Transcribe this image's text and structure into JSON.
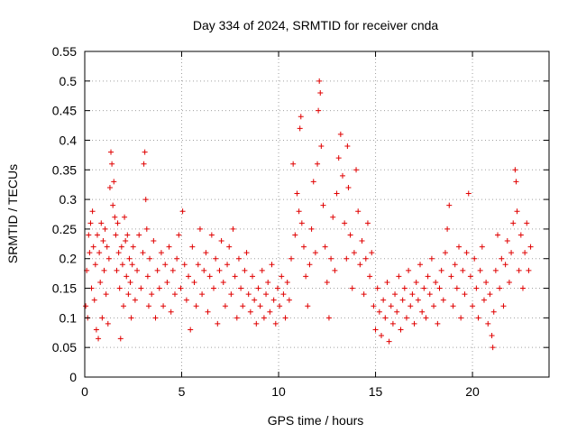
{
  "chart_data": {
    "type": "scatter",
    "title": "Day 334 of 2024, SRMTID for receiver cnda",
    "xlabel": "GPS time / hours",
    "ylabel": "SRMTID / TECUs",
    "xlim": [
      0,
      23.95
    ],
    "ylim": [
      0,
      0.55
    ],
    "x_ticks": [
      0,
      5,
      10,
      15,
      20
    ],
    "x_tick_labels": [
      "0",
      "5",
      "10",
      "15",
      "20"
    ],
    "y_ticks": [
      0,
      0.05,
      0.1,
      0.15,
      0.2,
      0.25,
      0.3,
      0.35,
      0.4,
      0.45,
      0.5,
      0.55
    ],
    "y_tick_labels": [
      "0",
      "0.05",
      "0.1",
      "0.15",
      "0.2",
      "0.25",
      "0.3",
      "0.35",
      "0.4",
      "0.45",
      "0.5",
      "0.55"
    ],
    "grid": true,
    "marker": "+",
    "color": "#e00000",
    "series": [
      {
        "name": "SRMTID",
        "points": [
          [
            0.05,
            0.12
          ],
          [
            0.1,
            0.18
          ],
          [
            0.15,
            0.1
          ],
          [
            0.2,
            0.24
          ],
          [
            0.25,
            0.21
          ],
          [
            0.3,
            0.26
          ],
          [
            0.35,
            0.15
          ],
          [
            0.4,
            0.28
          ],
          [
            0.45,
            0.22
          ],
          [
            0.5,
            0.13
          ],
          [
            0.55,
            0.19
          ],
          [
            0.6,
            0.08
          ],
          [
            0.65,
            0.24
          ],
          [
            0.7,
            0.065
          ],
          [
            0.75,
            0.21
          ],
          [
            0.8,
            0.16
          ],
          [
            0.85,
            0.26
          ],
          [
            0.9,
            0.1
          ],
          [
            0.95,
            0.23
          ],
          [
            1.0,
            0.18
          ],
          [
            1.05,
            0.25
          ],
          [
            1.1,
            0.14
          ],
          [
            1.15,
            0.22
          ],
          [
            1.2,
            0.09
          ],
          [
            1.25,
            0.2
          ],
          [
            1.3,
            0.32
          ],
          [
            1.35,
            0.38
          ],
          [
            1.4,
            0.36
          ],
          [
            1.45,
            0.29
          ],
          [
            1.5,
            0.33
          ],
          [
            1.55,
            0.27
          ],
          [
            1.6,
            0.24
          ],
          [
            1.65,
            0.18
          ],
          [
            1.7,
            0.26
          ],
          [
            1.75,
            0.21
          ],
          [
            1.8,
            0.15
          ],
          [
            1.85,
            0.065
          ],
          [
            1.9,
            0.22
          ],
          [
            1.95,
            0.19
          ],
          [
            2.0,
            0.12
          ],
          [
            2.05,
            0.27
          ],
          [
            2.1,
            0.23
          ],
          [
            2.15,
            0.17
          ],
          [
            2.2,
            0.24
          ],
          [
            2.25,
            0.14
          ],
          [
            2.3,
            0.2
          ],
          [
            2.35,
            0.16
          ],
          [
            2.4,
            0.1
          ],
          [
            2.45,
            0.19
          ],
          [
            2.5,
            0.22
          ],
          [
            2.6,
            0.13
          ],
          [
            2.7,
            0.18
          ],
          [
            2.8,
            0.24
          ],
          [
            2.9,
            0.15
          ],
          [
            3.0,
            0.21
          ],
          [
            3.05,
            0.36
          ],
          [
            3.1,
            0.38
          ],
          [
            3.15,
            0.3
          ],
          [
            3.2,
            0.25
          ],
          [
            3.25,
            0.17
          ],
          [
            3.3,
            0.12
          ],
          [
            3.35,
            0.2
          ],
          [
            3.45,
            0.14
          ],
          [
            3.55,
            0.23
          ],
          [
            3.65,
            0.1
          ],
          [
            3.75,
            0.18
          ],
          [
            3.85,
            0.15
          ],
          [
            3.95,
            0.21
          ],
          [
            4.05,
            0.12
          ],
          [
            4.15,
            0.19
          ],
          [
            4.25,
            0.16
          ],
          [
            4.35,
            0.22
          ],
          [
            4.45,
            0.11
          ],
          [
            4.55,
            0.18
          ],
          [
            4.65,
            0.14
          ],
          [
            4.75,
            0.2
          ],
          [
            4.85,
            0.24
          ],
          [
            4.95,
            0.15
          ],
          [
            5.05,
            0.28
          ],
          [
            5.15,
            0.19
          ],
          [
            5.25,
            0.13
          ],
          [
            5.35,
            0.17
          ],
          [
            5.45,
            0.08
          ],
          [
            5.55,
            0.22
          ],
          [
            5.65,
            0.16
          ],
          [
            5.75,
            0.12
          ],
          [
            5.85,
            0.19
          ],
          [
            5.95,
            0.25
          ],
          [
            6.05,
            0.14
          ],
          [
            6.15,
            0.18
          ],
          [
            6.25,
            0.21
          ],
          [
            6.35,
            0.11
          ],
          [
            6.45,
            0.17
          ],
          [
            6.55,
            0.24
          ],
          [
            6.65,
            0.15
          ],
          [
            6.75,
            0.2
          ],
          [
            6.85,
            0.09
          ],
          [
            6.95,
            0.18
          ],
          [
            7.05,
            0.23
          ],
          [
            7.15,
            0.16
          ],
          [
            7.25,
            0.12
          ],
          [
            7.35,
            0.19
          ],
          [
            7.45,
            0.22
          ],
          [
            7.55,
            0.14
          ],
          [
            7.65,
            0.25
          ],
          [
            7.75,
            0.17
          ],
          [
            7.85,
            0.1
          ],
          [
            7.95,
            0.2
          ],
          [
            8.05,
            0.15
          ],
          [
            8.15,
            0.12
          ],
          [
            8.25,
            0.18
          ],
          [
            8.35,
            0.21
          ],
          [
            8.45,
            0.14
          ],
          [
            8.55,
            0.11
          ],
          [
            8.65,
            0.17
          ],
          [
            8.75,
            0.13
          ],
          [
            8.85,
            0.09
          ],
          [
            8.95,
            0.15
          ],
          [
            9.05,
            0.12
          ],
          [
            9.15,
            0.18
          ],
          [
            9.25,
            0.1
          ],
          [
            9.35,
            0.14
          ],
          [
            9.45,
            0.16
          ],
          [
            9.55,
            0.11
          ],
          [
            9.65,
            0.19
          ],
          [
            9.75,
            0.13
          ],
          [
            9.85,
            0.09
          ],
          [
            9.95,
            0.15
          ],
          [
            10.05,
            0.12
          ],
          [
            10.15,
            0.17
          ],
          [
            10.25,
            0.14
          ],
          [
            10.35,
            0.1
          ],
          [
            10.45,
            0.16
          ],
          [
            10.55,
            0.13
          ],
          [
            10.65,
            0.2
          ],
          [
            10.75,
            0.36
          ],
          [
            10.85,
            0.24
          ],
          [
            10.95,
            0.31
          ],
          [
            11.05,
            0.28
          ],
          [
            11.1,
            0.42
          ],
          [
            11.15,
            0.44
          ],
          [
            11.2,
            0.26
          ],
          [
            11.3,
            0.22
          ],
          [
            11.4,
            0.17
          ],
          [
            11.5,
            0.12
          ],
          [
            11.6,
            0.19
          ],
          [
            11.7,
            0.25
          ],
          [
            11.8,
            0.33
          ],
          [
            11.9,
            0.21
          ],
          [
            12.0,
            0.36
          ],
          [
            12.05,
            0.45
          ],
          [
            12.1,
            0.5
          ],
          [
            12.15,
            0.48
          ],
          [
            12.2,
            0.39
          ],
          [
            12.3,
            0.29
          ],
          [
            12.4,
            0.22
          ],
          [
            12.5,
            0.16
          ],
          [
            12.6,
            0.1
          ],
          [
            12.7,
            0.2
          ],
          [
            12.8,
            0.27
          ],
          [
            12.9,
            0.18
          ],
          [
            13.0,
            0.31
          ],
          [
            13.1,
            0.37
          ],
          [
            13.2,
            0.41
          ],
          [
            13.3,
            0.34
          ],
          [
            13.4,
            0.26
          ],
          [
            13.5,
            0.2
          ],
          [
            13.55,
            0.39
          ],
          [
            13.6,
            0.32
          ],
          [
            13.7,
            0.24
          ],
          [
            13.8,
            0.15
          ],
          [
            13.9,
            0.21
          ],
          [
            14.0,
            0.35
          ],
          [
            14.1,
            0.28
          ],
          [
            14.2,
            0.19
          ],
          [
            14.3,
            0.23
          ],
          [
            14.4,
            0.14
          ],
          [
            14.5,
            0.2
          ],
          [
            14.6,
            0.26
          ],
          [
            14.7,
            0.17
          ],
          [
            14.8,
            0.21
          ],
          [
            14.9,
            0.12
          ],
          [
            15.0,
            0.08
          ],
          [
            15.1,
            0.15
          ],
          [
            15.2,
            0.11
          ],
          [
            15.3,
            0.07
          ],
          [
            15.4,
            0.13
          ],
          [
            15.5,
            0.1
          ],
          [
            15.6,
            0.16
          ],
          [
            15.7,
            0.06
          ],
          [
            15.8,
            0.12
          ],
          [
            15.9,
            0.09
          ],
          [
            16.0,
            0.14
          ],
          [
            16.1,
            0.11
          ],
          [
            16.2,
            0.17
          ],
          [
            16.3,
            0.08
          ],
          [
            16.4,
            0.13
          ],
          [
            16.5,
            0.15
          ],
          [
            16.6,
            0.1
          ],
          [
            16.7,
            0.18
          ],
          [
            16.8,
            0.12
          ],
          [
            16.9,
            0.14
          ],
          [
            17.0,
            0.09
          ],
          [
            17.1,
            0.16
          ],
          [
            17.2,
            0.13
          ],
          [
            17.3,
            0.19
          ],
          [
            17.4,
            0.11
          ],
          [
            17.5,
            0.15
          ],
          [
            17.6,
            0.1
          ],
          [
            17.7,
            0.17
          ],
          [
            17.8,
            0.14
          ],
          [
            17.9,
            0.2
          ],
          [
            18.0,
            0.12
          ],
          [
            18.1,
            0.16
          ],
          [
            18.2,
            0.09
          ],
          [
            18.3,
            0.15
          ],
          [
            18.4,
            0.18
          ],
          [
            18.5,
            0.13
          ],
          [
            18.6,
            0.21
          ],
          [
            18.7,
            0.25
          ],
          [
            18.8,
            0.29
          ],
          [
            18.9,
            0.17
          ],
          [
            19.0,
            0.12
          ],
          [
            19.1,
            0.19
          ],
          [
            19.2,
            0.15
          ],
          [
            19.3,
            0.22
          ],
          [
            19.4,
            0.1
          ],
          [
            19.5,
            0.18
          ],
          [
            19.6,
            0.14
          ],
          [
            19.7,
            0.21
          ],
          [
            19.8,
            0.31
          ],
          [
            19.9,
            0.17
          ],
          [
            20.0,
            0.12
          ],
          [
            20.1,
            0.2
          ],
          [
            20.2,
            0.15
          ],
          [
            20.3,
            0.1
          ],
          [
            20.4,
            0.18
          ],
          [
            20.5,
            0.22
          ],
          [
            20.6,
            0.13
          ],
          [
            20.7,
            0.16
          ],
          [
            20.8,
            0.09
          ],
          [
            20.9,
            0.14
          ],
          [
            21.0,
            0.07
          ],
          [
            21.05,
            0.05
          ],
          [
            21.1,
            0.11
          ],
          [
            21.2,
            0.18
          ],
          [
            21.3,
            0.24
          ],
          [
            21.4,
            0.15
          ],
          [
            21.5,
            0.2
          ],
          [
            21.6,
            0.12
          ],
          [
            21.7,
            0.19
          ],
          [
            21.8,
            0.23
          ],
          [
            21.9,
            0.16
          ],
          [
            22.0,
            0.21
          ],
          [
            22.1,
            0.26
          ],
          [
            22.2,
            0.35
          ],
          [
            22.25,
            0.33
          ],
          [
            22.3,
            0.28
          ],
          [
            22.4,
            0.18
          ],
          [
            22.5,
            0.24
          ],
          [
            22.6,
            0.15
          ],
          [
            22.7,
            0.21
          ],
          [
            22.8,
            0.26
          ],
          [
            22.9,
            0.18
          ],
          [
            23.0,
            0.22
          ]
        ]
      }
    ]
  }
}
